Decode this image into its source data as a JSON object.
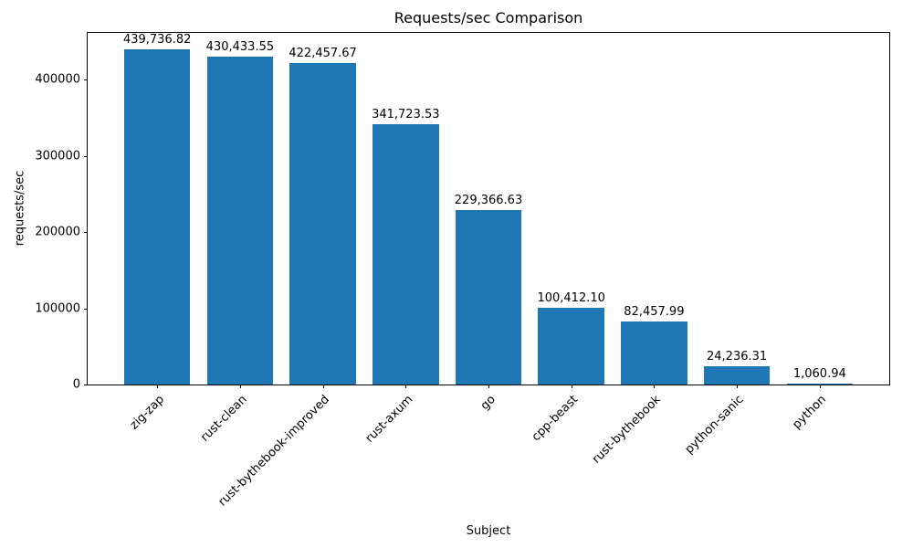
{
  "chart_data": {
    "type": "bar",
    "title": "Requests/sec Comparison",
    "xlabel": "Subject",
    "ylabel": "requests/sec",
    "categories": [
      "zig-zap",
      "rust-clean",
      "rust-bythebook-improved",
      "rust-axum",
      "go",
      "cpp-beast",
      "rust-bythebook",
      "python-sanic",
      "python"
    ],
    "values": [
      439736.82,
      430433.55,
      422457.67,
      341723.53,
      229366.63,
      100412.1,
      82457.99,
      24236.31,
      1060.94
    ],
    "bar_labels": [
      "439,736.82",
      "430,433.55",
      "422,457.67",
      "341,723.53",
      "229,366.63",
      "100,412.10",
      "82,457.99",
      "24,236.31",
      "1,060.94"
    ],
    "ylim": [
      0,
      461724
    ],
    "yticks": [
      0,
      100000,
      200000,
      300000,
      400000
    ],
    "ytick_labels": [
      "0",
      "100000",
      "200000",
      "300000",
      "400000"
    ],
    "bar_color": "#1f77b4",
    "grid": false,
    "legend": "none"
  }
}
